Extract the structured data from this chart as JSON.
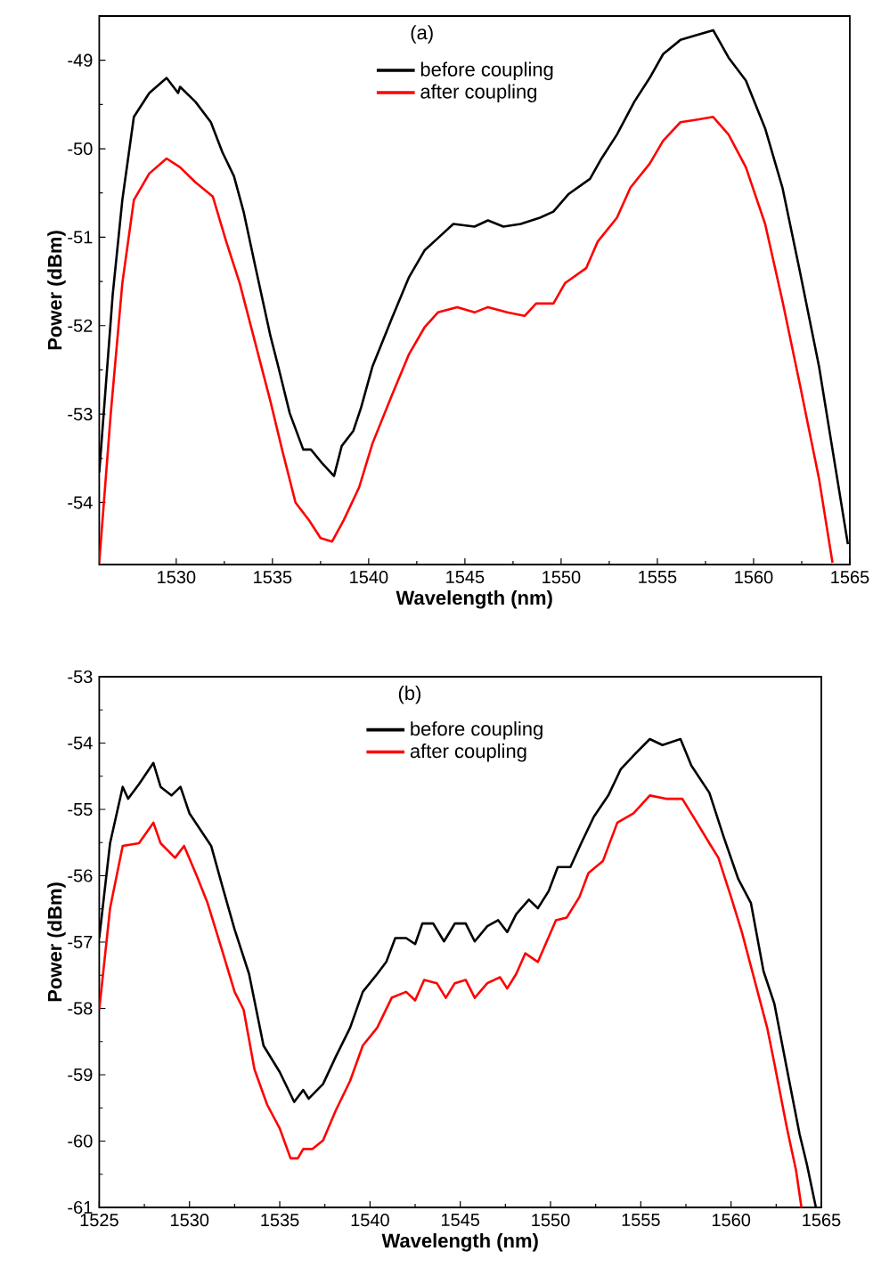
{
  "chart_data": [
    {
      "type": "line",
      "xlabel": "Wavelength (nm)",
      "ylabel": "Power (dBm)",
      "annotations": [
        "(a)"
      ],
      "legend": "top",
      "xlim": [
        1526,
        1565
      ],
      "ylim": [
        -54.7,
        -48.5
      ],
      "xticks": [
        1530,
        1535,
        1540,
        1545,
        1550,
        1555,
        1560,
        1565
      ],
      "yticks": [
        -54,
        -53,
        -52,
        -51,
        -50,
        -49
      ],
      "grid": false,
      "marker": "none",
      "line_style": "solid",
      "series": [
        {
          "name": "before coupling",
          "color": "#000000",
          "x": [
            1526,
            1526.7,
            1527.2,
            1527.8,
            1528.6,
            1529.5,
            1530.1,
            1530.2,
            1531,
            1531.8,
            1532.4,
            1533,
            1533.5,
            1534.1,
            1534.9,
            1535.3,
            1535.9,
            1536.6,
            1537,
            1537.6,
            1538.2,
            1538.6,
            1539.2,
            1539.6,
            1540.2,
            1541.2,
            1542.1,
            1542.9,
            1543.6,
            1544.4,
            1545.5,
            1546.2,
            1547,
            1547.9,
            1548.9,
            1549.6,
            1550.4,
            1551.5,
            1552.1,
            1552.9,
            1553.8,
            1554.6,
            1555.3,
            1556.2,
            1557.1,
            1557.9,
            1558.7,
            1559.6,
            1560.6,
            1561.5,
            1562.4,
            1563.4,
            1564.1,
            1564.9
          ],
          "values": [
            -53.66,
            -51.65,
            -50.58,
            -49.64,
            -49.37,
            -49.2,
            -49.37,
            -49.3,
            -49.47,
            -49.7,
            -50.04,
            -50.31,
            -50.71,
            -51.32,
            -52.12,
            -52.46,
            -52.99,
            -53.4,
            -53.4,
            -53.56,
            -53.7,
            -53.36,
            -53.19,
            -52.93,
            -52.46,
            -51.92,
            -51.45,
            -51.15,
            -51.01,
            -50.85,
            -50.88,
            -50.81,
            -50.88,
            -50.85,
            -50.78,
            -50.71,
            -50.51,
            -50.34,
            -50.11,
            -49.84,
            -49.47,
            -49.2,
            -48.93,
            -48.77,
            -48.71,
            -48.66,
            -48.97,
            -49.23,
            -49.77,
            -50.44,
            -51.38,
            -52.46,
            -53.4,
            -54.47
          ]
        },
        {
          "name": "after coupling",
          "color": "#ff0000",
          "x": [
            1526,
            1526.6,
            1527.2,
            1527.8,
            1528.6,
            1529.5,
            1530.2,
            1531,
            1531.9,
            1532.6,
            1533.3,
            1534.1,
            1534.9,
            1535.5,
            1536.2,
            1536.9,
            1537.5,
            1538.1,
            1538.7,
            1539.5,
            1540.2,
            1541.2,
            1542.1,
            1542.9,
            1543.6,
            1544.6,
            1545.5,
            1546.2,
            1547.2,
            1548.1,
            1548.7,
            1549.6,
            1550.2,
            1551.3,
            1551.9,
            1552.9,
            1553.6,
            1554.6,
            1555.3,
            1556.2,
            1557.1,
            1557.9,
            1558.7,
            1559.6,
            1560.6,
            1561.5,
            1562.4,
            1563.4,
            1564.1
          ],
          "values": [
            -54.68,
            -52.99,
            -51.52,
            -50.58,
            -50.28,
            -50.11,
            -50.21,
            -50.38,
            -50.54,
            -51.05,
            -51.52,
            -52.19,
            -52.86,
            -53.4,
            -54.0,
            -54.2,
            -54.4,
            -54.44,
            -54.2,
            -53.83,
            -53.33,
            -52.79,
            -52.32,
            -52.02,
            -51.85,
            -51.79,
            -51.85,
            -51.79,
            -51.85,
            -51.89,
            -51.75,
            -51.75,
            -51.52,
            -51.35,
            -51.05,
            -50.78,
            -50.44,
            -50.17,
            -49.91,
            -49.7,
            -49.67,
            -49.64,
            -49.84,
            -50.21,
            -50.85,
            -51.72,
            -52.66,
            -53.73,
            -54.68
          ]
        }
      ]
    },
    {
      "type": "line",
      "xlabel": "Wavelength (nm)",
      "ylabel": "Power (dBm)",
      "annotations": [
        "(b)"
      ],
      "legend": "top",
      "xlim": [
        1525,
        1565
      ],
      "ylim": [
        -61,
        -53
      ],
      "xticks": [
        1525,
        1530,
        1535,
        1540,
        1545,
        1550,
        1555,
        1560,
        1565
      ],
      "yticks": [
        -61,
        -60,
        -59,
        -58,
        -57,
        -56,
        -55,
        -54,
        -53
      ],
      "grid": false,
      "marker": "none",
      "line_style": "solid",
      "series": [
        {
          "name": "before coupling",
          "color": "#000000",
          "x": [
            1525,
            1525.6,
            1526.3,
            1526.6,
            1527.2,
            1528.0,
            1528.4,
            1529.0,
            1529.5,
            1530.0,
            1531.2,
            1531.8,
            1532.5,
            1533.3,
            1534.1,
            1535.0,
            1535.8,
            1536.3,
            1536.6,
            1537.4,
            1538.1,
            1538.9,
            1539.6,
            1540.4,
            1540.9,
            1541.4,
            1542.0,
            1542.5,
            1542.9,
            1543.5,
            1544.1,
            1544.7,
            1545.3,
            1545.8,
            1546.5,
            1547.1,
            1547.6,
            1548.1,
            1548.8,
            1549.3,
            1549.9,
            1550.4,
            1551.1,
            1551.7,
            1552.4,
            1553.2,
            1553.9,
            1554.7,
            1555.5,
            1556.2,
            1557.2,
            1557.8,
            1558.8,
            1559.6,
            1560.4,
            1561.1,
            1561.8,
            1562.4,
            1563.1,
            1563.8,
            1564.2,
            1564.7
          ],
          "values": [
            -56.94,
            -55.51,
            -54.66,
            -54.84,
            -54.62,
            -54.3,
            -54.66,
            -54.79,
            -54.66,
            -55.06,
            -55.55,
            -56.14,
            -56.81,
            -57.48,
            -58.56,
            -58.96,
            -59.41,
            -59.23,
            -59.36,
            -59.14,
            -58.73,
            -58.29,
            -57.75,
            -57.48,
            -57.3,
            -56.94,
            -56.94,
            -57.03,
            -56.72,
            -56.72,
            -56.99,
            -56.72,
            -56.72,
            -56.99,
            -56.76,
            -56.67,
            -56.85,
            -56.58,
            -56.36,
            -56.49,
            -56.23,
            -55.87,
            -55.87,
            -55.51,
            -55.11,
            -54.79,
            -54.39,
            -54.16,
            -53.94,
            -54.03,
            -53.94,
            -54.34,
            -54.75,
            -55.42,
            -56.05,
            -56.41,
            -57.44,
            -57.93,
            -58.92,
            -59.9,
            -60.35,
            -61
          ]
        },
        {
          "name": "after coupling",
          "color": "#ff0000",
          "x": [
            1525,
            1525.6,
            1526.3,
            1527.2,
            1528.0,
            1528.4,
            1529.2,
            1529.7,
            1530.4,
            1531.0,
            1531.8,
            1532.5,
            1533.0,
            1533.6,
            1534.3,
            1535.0,
            1535.6,
            1536.0,
            1536.3,
            1536.8,
            1537.4,
            1538.1,
            1538.9,
            1539.6,
            1540.4,
            1541.2,
            1542.0,
            1542.5,
            1543.0,
            1543.7,
            1544.2,
            1544.7,
            1545.3,
            1545.8,
            1546.5,
            1547.2,
            1547.6,
            1548.1,
            1548.6,
            1549.3,
            1550.3,
            1550.9,
            1551.6,
            1552.1,
            1552.9,
            1553.7,
            1554.6,
            1555.5,
            1556.4,
            1557.3,
            1558.0,
            1558.8,
            1559.3,
            1560.0,
            1560.6,
            1561.3,
            1562.0,
            1562.4,
            1563.1,
            1563.6,
            1563.9
          ],
          "values": [
            -58.02,
            -56.49,
            -55.55,
            -55.51,
            -55.2,
            -55.51,
            -55.73,
            -55.55,
            -56.0,
            -56.41,
            -57.12,
            -57.75,
            -58.02,
            -58.92,
            -59.45,
            -59.81,
            -60.26,
            -60.26,
            -60.12,
            -60.12,
            -59.99,
            -59.54,
            -59.09,
            -58.56,
            -58.29,
            -57.84,
            -57.75,
            -57.88,
            -57.57,
            -57.62,
            -57.84,
            -57.62,
            -57.57,
            -57.84,
            -57.62,
            -57.53,
            -57.7,
            -57.48,
            -57.17,
            -57.3,
            -56.67,
            -56.63,
            -56.32,
            -55.96,
            -55.78,
            -55.2,
            -55.06,
            -54.79,
            -54.84,
            -54.84,
            -55.15,
            -55.51,
            -55.73,
            -56.32,
            -56.85,
            -57.57,
            -58.29,
            -58.83,
            -59.81,
            -60.44,
            -61
          ]
        }
      ]
    }
  ]
}
